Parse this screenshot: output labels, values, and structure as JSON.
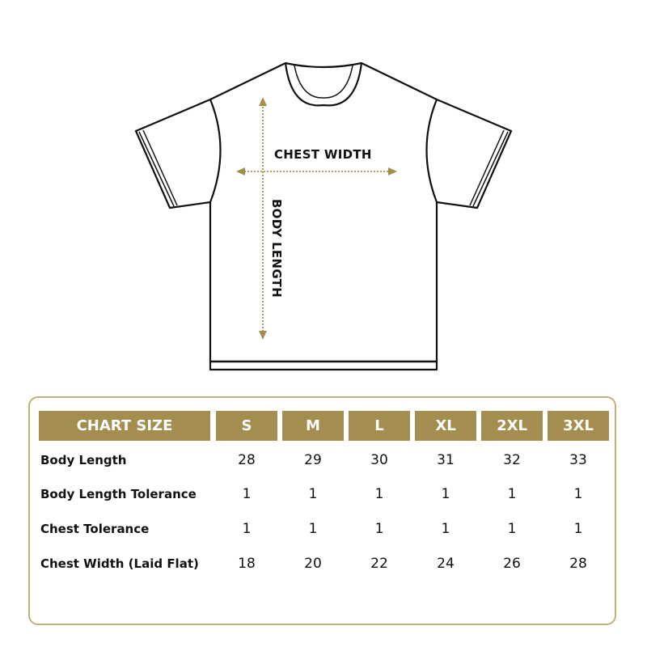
{
  "diagram": {
    "chest_label": "CHEST WIDTH",
    "body_label": "BODY LENGTH",
    "arrow_color": "#a38d4f"
  },
  "table": {
    "corner": "CHART SIZE",
    "sizes": [
      "S",
      "M",
      "L",
      "XL",
      "2XL",
      "3XL"
    ],
    "rows": [
      {
        "label": "Body Length",
        "values": [
          "28",
          "29",
          "30",
          "31",
          "32",
          "33"
        ]
      },
      {
        "label": "Body Length Tolerance",
        "values": [
          "1",
          "1",
          "1",
          "1",
          "1",
          "1"
        ]
      },
      {
        "label": "Chest Tolerance",
        "values": [
          "1",
          "1",
          "1",
          "1",
          "1",
          "1"
        ]
      },
      {
        "label": "Chest Width (Laid Flat)",
        "values": [
          "18",
          "20",
          "22",
          "24",
          "26",
          "28"
        ]
      }
    ],
    "header_color": "#a38d4f",
    "border_color": "#c2b07a"
  }
}
